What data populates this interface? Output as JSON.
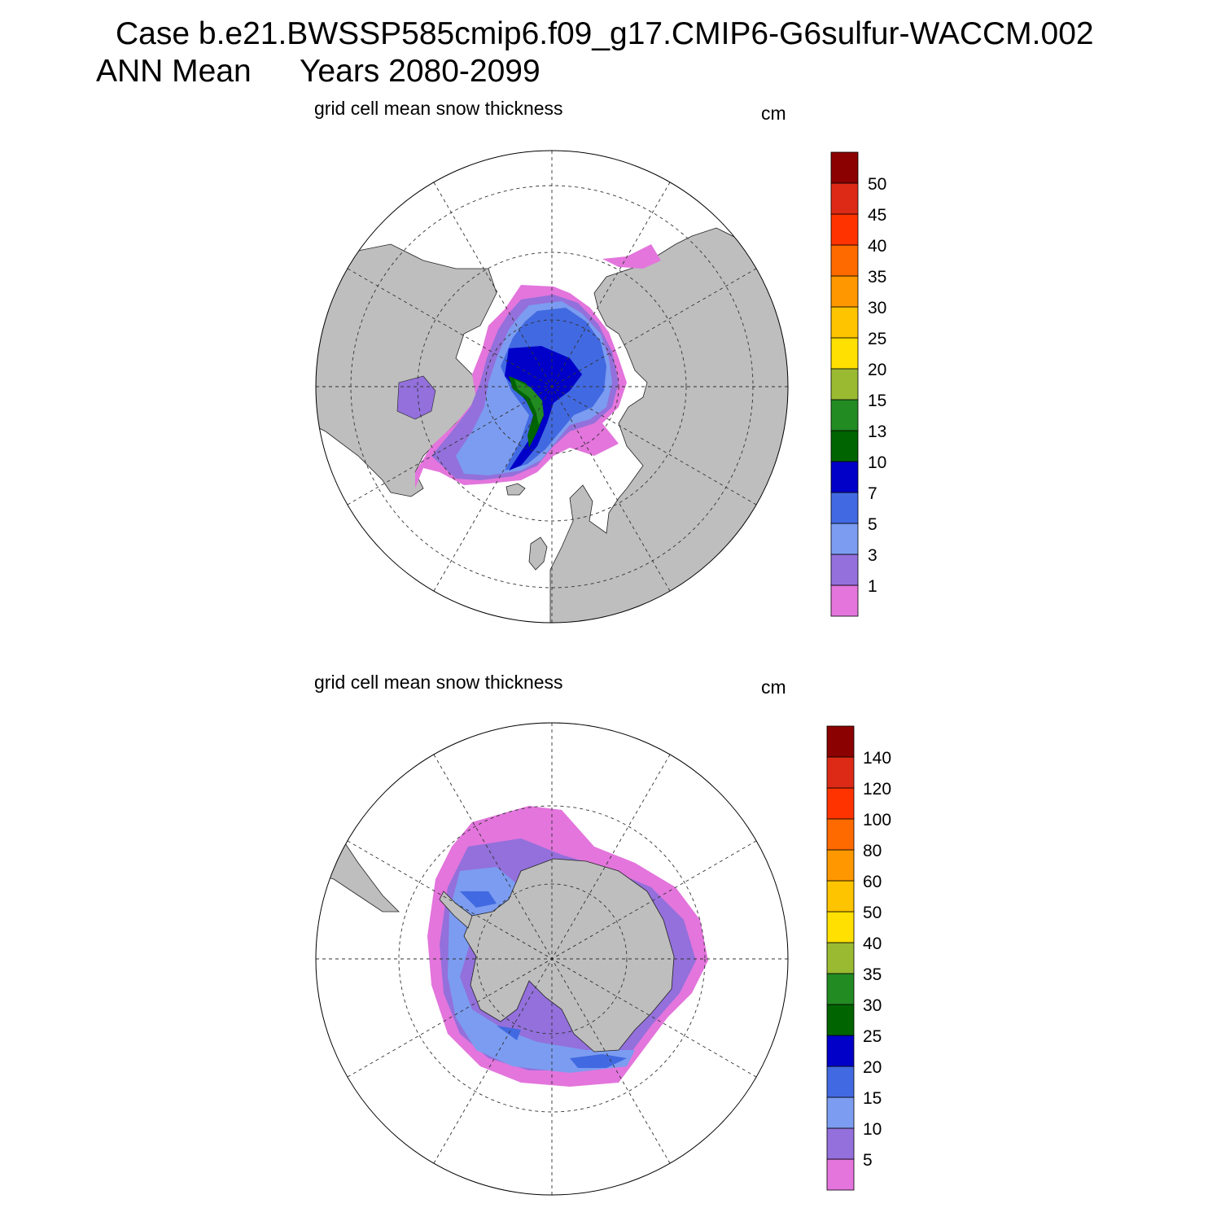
{
  "header": {
    "case": "Case b.e21.BWSSP585cmip6.f09_g17.CMIP6-G6sulfur-WACCM.002",
    "mean": "ANN Mean",
    "years": "Years 2080-2099"
  },
  "panels": [
    {
      "hemisphere": "north",
      "title": "grid cell mean snow thickness",
      "units": "cm",
      "colorbar": {
        "labels": [
          "1",
          "3",
          "5",
          "7",
          "10",
          "13",
          "15",
          "20",
          "25",
          "30",
          "35",
          "40",
          "45",
          "50"
        ],
        "colors": [
          "#e375dc",
          "#9370db",
          "#7b9cf0",
          "#4169e1",
          "#0000c8",
          "#006400",
          "#228b22",
          "#9aba32",
          "#ffe000",
          "#ffc400",
          "#ff9800",
          "#ff6a00",
          "#ff3300",
          "#dd2a17",
          "#8b0000"
        ]
      }
    },
    {
      "hemisphere": "south",
      "title": "grid cell mean snow thickness",
      "units": "cm",
      "colorbar": {
        "labels": [
          "5",
          "10",
          "15",
          "20",
          "25",
          "30",
          "35",
          "40",
          "50",
          "60",
          "80",
          "100",
          "120",
          "140"
        ],
        "colors": [
          "#e375dc",
          "#9370db",
          "#7b9cf0",
          "#4169e1",
          "#0000c8",
          "#006400",
          "#228b22",
          "#9aba32",
          "#ffe000",
          "#ffc400",
          "#ff9800",
          "#ff6a00",
          "#ff3300",
          "#dd2a17",
          "#8b0000"
        ]
      }
    }
  ],
  "colors": {
    "land": "#bebebe",
    "ocean": "#ffffff",
    "grid": "#333333"
  }
}
